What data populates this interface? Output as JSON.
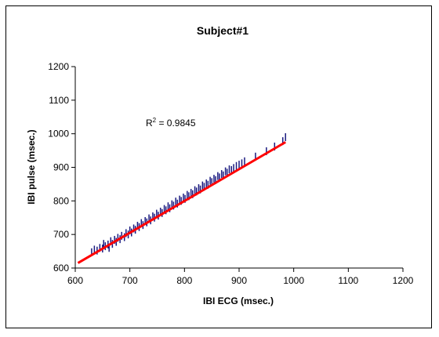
{
  "chart_data": {
    "type": "scatter",
    "title": "Subject#1",
    "xlabel": "IBI ECG (msec.)",
    "ylabel": "IBI pulse (msec.)",
    "xlim": [
      600,
      1200
    ],
    "ylim": [
      600,
      1200
    ],
    "xticks": [
      600,
      700,
      800,
      900,
      1000,
      1100,
      1200
    ],
    "yticks": [
      600,
      700,
      800,
      900,
      1000,
      1100,
      1200
    ],
    "grid": false,
    "legend": "none",
    "annotation": {
      "prefix": "R",
      "superscript": "2",
      "suffix": " = 0.9845"
    },
    "series": [
      {
        "marker": "vertical-dash",
        "color": "#1a1a80",
        "points": [
          [
            630,
            647
          ],
          [
            635,
            655
          ],
          [
            640,
            652
          ],
          [
            645,
            660
          ],
          [
            650,
            658
          ],
          [
            652,
            672
          ],
          [
            655,
            665
          ],
          [
            660,
            670
          ],
          [
            662,
            660
          ],
          [
            665,
            680
          ],
          [
            668,
            672
          ],
          [
            672,
            684
          ],
          [
            675,
            678
          ],
          [
            678,
            690
          ],
          [
            682,
            686
          ],
          [
            685,
            696
          ],
          [
            690,
            692
          ],
          [
            693,
            704
          ],
          [
            697,
            700
          ],
          [
            700,
            712
          ],
          [
            703,
            706
          ],
          [
            707,
            718
          ],
          [
            710,
            714
          ],
          [
            714,
            726
          ],
          [
            717,
            722
          ],
          [
            721,
            734
          ],
          [
            724,
            728
          ],
          [
            728,
            740
          ],
          [
            731,
            736
          ],
          [
            735,
            748
          ],
          [
            738,
            742
          ],
          [
            742,
            754
          ],
          [
            745,
            750
          ],
          [
            749,
            762
          ],
          [
            752,
            756
          ],
          [
            756,
            768
          ],
          [
            759,
            764
          ],
          [
            763,
            776
          ],
          [
            766,
            772
          ],
          [
            770,
            784
          ],
          [
            773,
            778
          ],
          [
            777,
            790
          ],
          [
            780,
            786
          ],
          [
            784,
            798
          ],
          [
            787,
            792
          ],
          [
            791,
            804
          ],
          [
            794,
            800
          ],
          [
            798,
            810
          ],
          [
            801,
            806
          ],
          [
            805,
            818
          ],
          [
            808,
            814
          ],
          [
            812,
            824
          ],
          [
            815,
            820
          ],
          [
            819,
            832
          ],
          [
            822,
            828
          ],
          [
            826,
            838
          ],
          [
            829,
            834
          ],
          [
            833,
            846
          ],
          [
            836,
            842
          ],
          [
            840,
            852
          ],
          [
            843,
            848
          ],
          [
            847,
            860
          ],
          [
            850,
            856
          ],
          [
            854,
            866
          ],
          [
            857,
            862
          ],
          [
            861,
            874
          ],
          [
            864,
            870
          ],
          [
            868,
            880
          ],
          [
            871,
            876
          ],
          [
            875,
            888
          ],
          [
            878,
            884
          ],
          [
            882,
            894
          ],
          [
            886,
            892
          ],
          [
            890,
            898
          ],
          [
            895,
            904
          ],
          [
            900,
            908
          ],
          [
            905,
            912
          ],
          [
            910,
            918
          ],
          [
            930,
            932
          ],
          [
            950,
            948
          ],
          [
            965,
            962
          ],
          [
            980,
            978
          ],
          [
            985,
            990
          ]
        ]
      },
      {
        "name": "",
        "type": "line",
        "color": "#ff0000",
        "x": [
          605,
          985
        ],
        "y": [
          615,
          975
        ]
      }
    ]
  }
}
